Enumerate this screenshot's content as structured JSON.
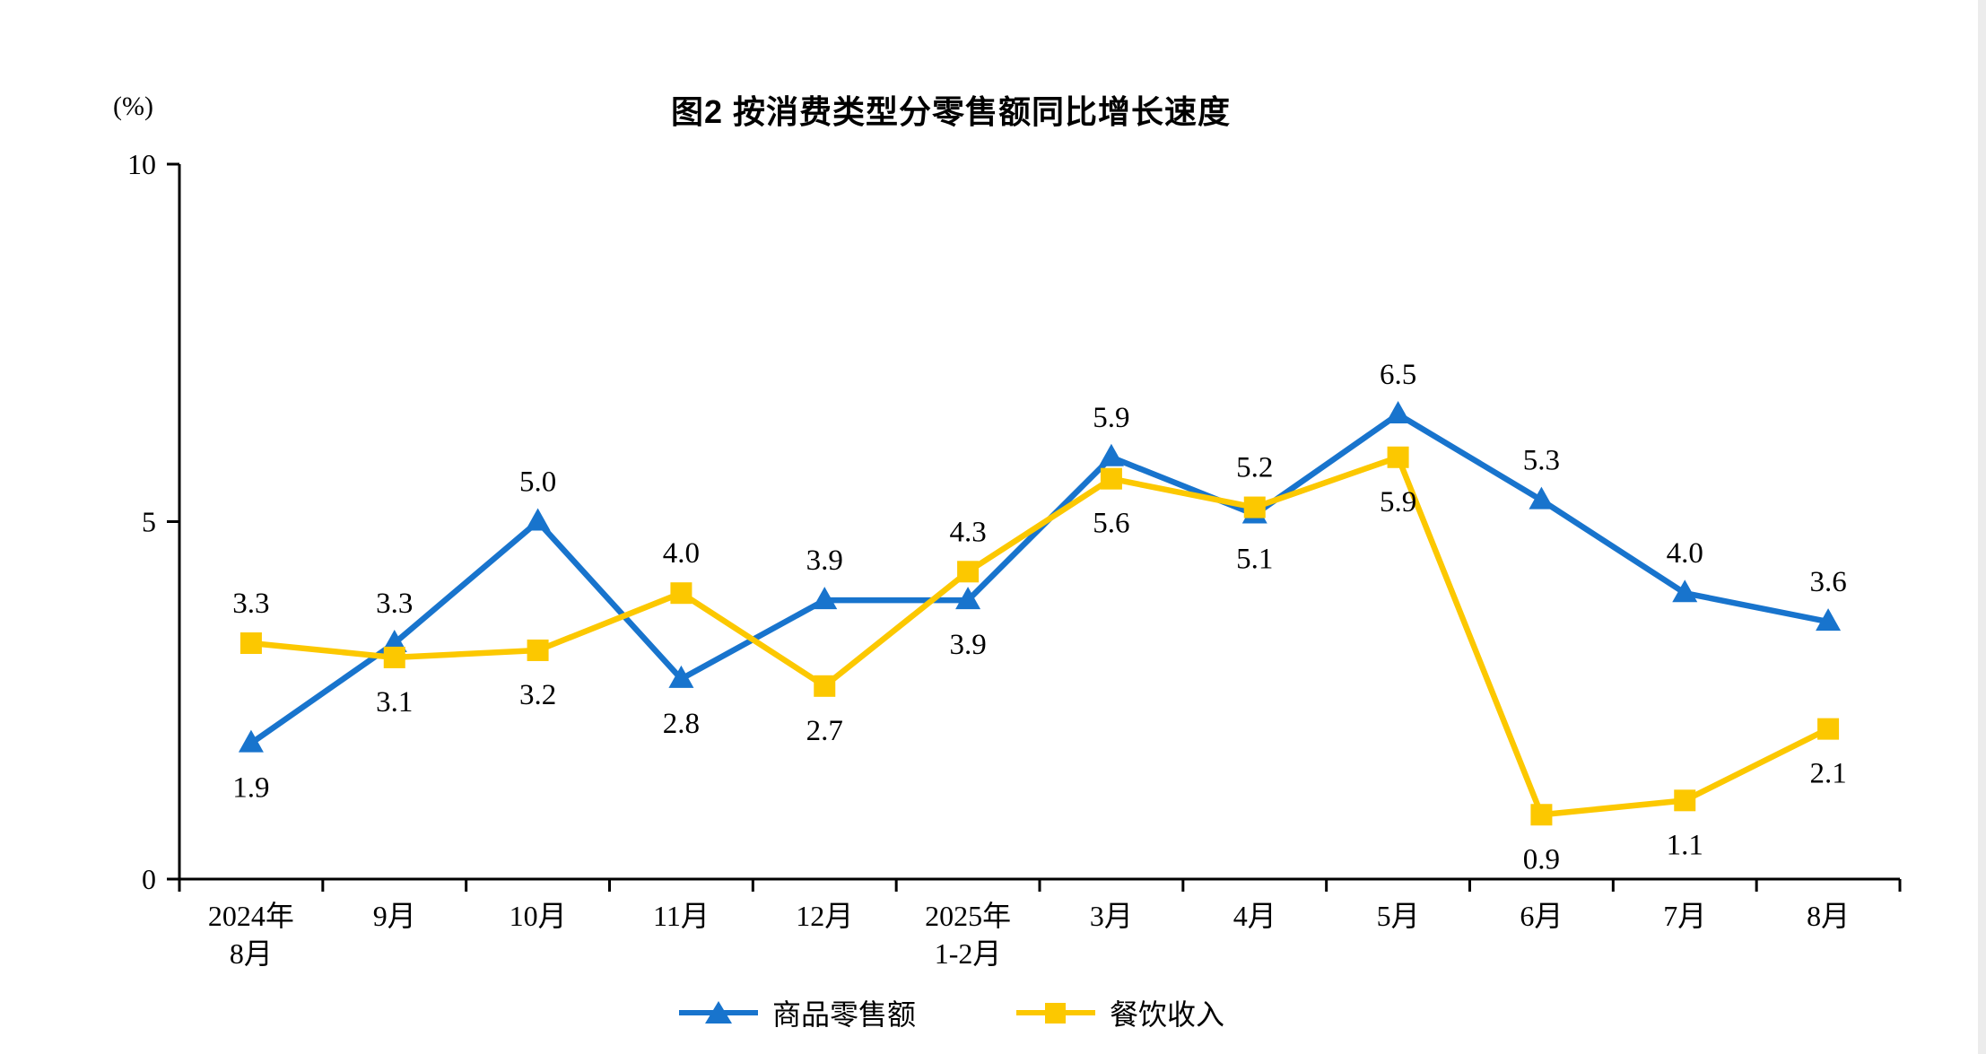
{
  "page": {
    "title": "图2  按消费类型分零售额同比增长速度",
    "unit_label": "(%)"
  },
  "colors": {
    "goods": "#1874CD",
    "catering": "#FCC800",
    "axis": "#000000",
    "page_edge": "#ECECEC"
  },
  "chart_data": {
    "type": "line",
    "title": "图2  按消费类型分零售额同比增长速度",
    "ylabel": "(%)",
    "categories": [
      "2024年\n8月",
      "9月",
      "10月",
      "11月",
      "12月",
      "2025年\n1-2月",
      "3月",
      "4月",
      "5月",
      "6月",
      "7月",
      "8月"
    ],
    "series": [
      {
        "name": "商品零售额",
        "marker": "triangle",
        "color_key": "goods",
        "values": [
          1.9,
          3.3,
          5.0,
          2.8,
          3.9,
          3.9,
          5.9,
          5.1,
          6.5,
          5.3,
          4.0,
          3.6
        ]
      },
      {
        "name": "餐饮收入",
        "marker": "square",
        "color_key": "catering",
        "values": [
          3.3,
          3.1,
          3.2,
          4.0,
          2.7,
          4.3,
          5.6,
          5.2,
          5.9,
          0.9,
          1.1,
          2.1
        ]
      }
    ],
    "ylim": [
      0,
      10
    ],
    "yticks": [
      0,
      5,
      10
    ],
    "grid": false,
    "legend_position": "bottom"
  },
  "legend": {
    "items": [
      {
        "label": "商品零售额",
        "marker": "triangle",
        "color_key": "goods"
      },
      {
        "label": "餐饮收入",
        "marker": "square",
        "color_key": "catering"
      }
    ]
  }
}
